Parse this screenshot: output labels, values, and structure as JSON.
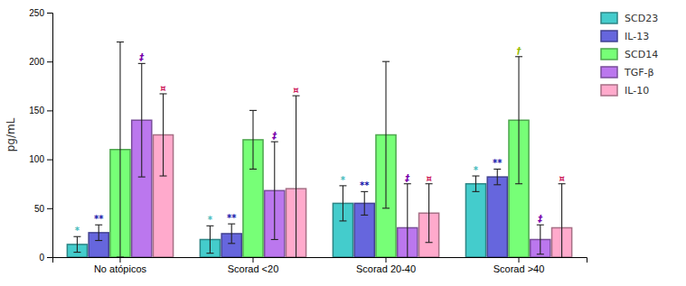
{
  "chart_data": {
    "type": "bar",
    "ylabel": "pg/mL",
    "categories": [
      "No atópicos",
      "Scorad <20",
      "Scorad 20-40",
      "Scorad >40"
    ],
    "series": [
      {
        "name": "SCD23",
        "color": "#44CCCC",
        "values": [
          13,
          18,
          55,
          75
        ],
        "errors": [
          8,
          14,
          18,
          8
        ]
      },
      {
        "name": "IL-13",
        "color": "#6666DD",
        "values": [
          25,
          24,
          55,
          82
        ],
        "errors": [
          8,
          10,
          12,
          8
        ]
      },
      {
        "name": "SCD14",
        "color": "#77FF77",
        "values": [
          110,
          120,
          125,
          140
        ],
        "errors": [
          110,
          30,
          75,
          65
        ]
      },
      {
        "name": "TGF-β",
        "color": "#BB77EE",
        "values": [
          140,
          68,
          30,
          18
        ],
        "errors": [
          58,
          50,
          45,
          15
        ]
      },
      {
        "name": "IL-10",
        "color": "#FFAACC",
        "values": [
          125,
          70,
          45,
          30
        ],
        "errors": [
          42,
          95,
          30,
          45
        ]
      }
    ],
    "annotations": [
      {
        "text": "*",
        "series": "SCD23",
        "category": "No atópicos",
        "color": "#44BBBB"
      },
      {
        "text": "**",
        "series": "IL-13",
        "category": "No atópicos",
        "color": "#1111AA"
      },
      {
        "text": "‡",
        "series": "TGF-β",
        "category": "No atópicos",
        "color": "#7700AA"
      },
      {
        "text": "¤",
        "series": "IL-10",
        "category": "No atópicos",
        "color": "#CC1155"
      },
      {
        "text": "*",
        "series": "SCD23",
        "category": "Scorad <20",
        "color": "#44BBBB"
      },
      {
        "text": "**",
        "series": "IL-13",
        "category": "Scorad <20",
        "color": "#1111AA"
      },
      {
        "text": "‡",
        "series": "TGF-β",
        "category": "Scorad <20",
        "color": "#7700AA"
      },
      {
        "text": "¤",
        "series": "IL-10",
        "category": "Scorad <20",
        "color": "#CC1155"
      },
      {
        "text": "*",
        "series": "SCD23",
        "category": "Scorad 20-40",
        "color": "#44BBBB"
      },
      {
        "text": "**",
        "series": "IL-13",
        "category": "Scorad 20-40",
        "color": "#1111AA"
      },
      {
        "text": "‡",
        "series": "TGF-β",
        "category": "Scorad 20-40",
        "color": "#7700AA"
      },
      {
        "text": "¤",
        "series": "IL-10",
        "category": "Scorad 20-40",
        "color": "#CC1155"
      },
      {
        "text": "*",
        "series": "SCD23",
        "category": "Scorad >40",
        "color": "#44BBBB"
      },
      {
        "text": "**",
        "series": "IL-13",
        "category": "Scorad >40",
        "color": "#1111AA"
      },
      {
        "text": "†",
        "series": "SCD14",
        "category": "Scorad >40",
        "color": "#99BB00"
      },
      {
        "text": "‡",
        "series": "TGF-β",
        "category": "Scorad >40",
        "color": "#7700AA"
      },
      {
        "text": "¤",
        "series": "IL-10",
        "category": "Scorad >40",
        "color": "#CC1155"
      }
    ],
    "ylim": [
      0,
      250
    ],
    "yticks": [
      0,
      50,
      100,
      150,
      200,
      250
    ],
    "grid": false,
    "legend": "upper right"
  }
}
